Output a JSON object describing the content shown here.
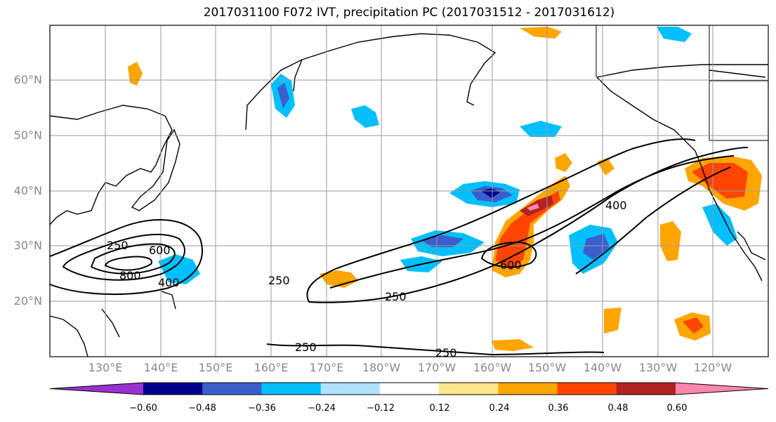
{
  "title": "2017031100 F072 IVT, precipitation PC (2017031512 - 2017031612)",
  "lat_labels": [
    "60°N",
    "50°N",
    "40°N",
    "30°N",
    "20°N"
  ],
  "lon_labels": [
    "130°E",
    "140°E",
    "150°E",
    "160°E",
    "170°E",
    "180°W",
    "170°W",
    "160°W",
    "150°W",
    "140°W",
    "130°W",
    "120°W"
  ],
  "colorbar": {
    "labels": [
      "−0.60",
      "−0.48",
      "−0.36",
      "−0.24",
      "−0.12",
      "0.12",
      "0.24",
      "0.36",
      "0.48",
      "0.60"
    ],
    "colors": [
      "#9932cc",
      "#00008b",
      "#3a5fcd",
      "#00bfff",
      "#b0e2ff",
      "#ffffff",
      "#fde68a",
      "#ffa500",
      "#ff4500",
      "#b22222",
      "#ff88aa"
    ]
  },
  "contour_labels": [
    "250",
    "600",
    "800",
    "400",
    "250",
    "250",
    "250",
    "250",
    "600",
    "400"
  ]
}
